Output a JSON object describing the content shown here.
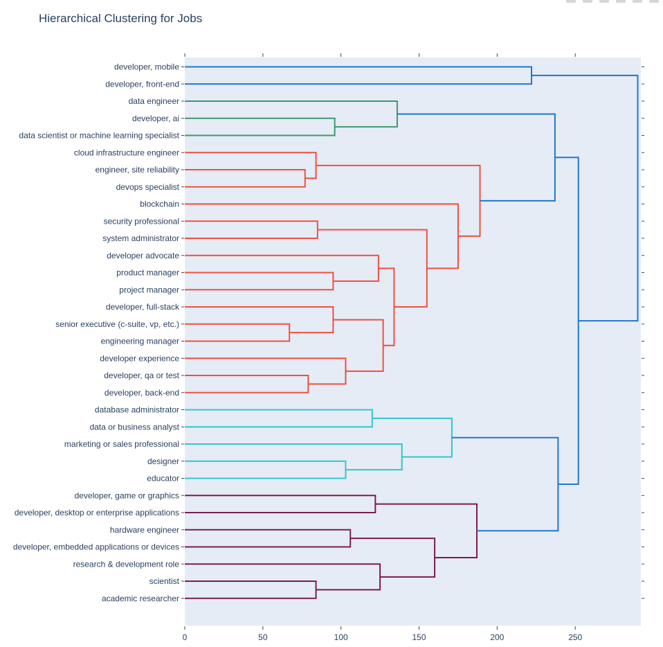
{
  "title": "Hierarchical Clustering for Jobs",
  "toolbar": {
    "buttons": [
      "camera-icon",
      "zoom-icon",
      "pan-icon",
      "zoom-in-icon",
      "zoom-out-icon",
      "autoscale-icon"
    ]
  },
  "chart_data": {
    "type": "dendrogram",
    "orientation": "horizontal",
    "title": "Hierarchical Clustering for Jobs",
    "xlabel": "",
    "ylabel": "",
    "xlim": [
      0,
      292
    ],
    "x_ticks": [
      0,
      50,
      100,
      150,
      200,
      250
    ],
    "grid": false,
    "background": "#e5ecf6",
    "colors": {
      "root": "#1f77cc",
      "green": "#3d9970",
      "red": "#f04f3f",
      "cyan": "#2ec7c9",
      "purple": "#7b1c4f"
    },
    "leaves": [
      "developer, mobile",
      "developer, front-end",
      "data engineer",
      "developer, ai",
      "data scientist or machine learning specialist",
      "cloud infrastructure engineer",
      "engineer, site reliability",
      "devops specialist",
      "blockchain",
      "security professional",
      "system administrator",
      "developer advocate",
      "product manager",
      "project manager",
      "developer, full-stack",
      "senior executive (c-suite, vp, etc.)",
      "engineering manager",
      "developer experience",
      "developer, qa or test",
      "developer, back-end",
      "database administrator",
      "data or business analyst",
      "marketing or sales professional",
      "designer",
      "educator",
      "developer, game or graphics",
      "developer, desktop or enterprise applications",
      "hardware engineer",
      "developer, embedded applications or devices",
      "research & development role",
      "scientist",
      "academic researcher"
    ],
    "merges": [
      {
        "id": "M1",
        "a": "L0",
        "b": "L1",
        "height": 222,
        "color": "root"
      },
      {
        "id": "M2",
        "a": "L3",
        "b": "L4",
        "height": 96,
        "color": "green"
      },
      {
        "id": "M3",
        "a": "L2",
        "b": "M2",
        "height": 136,
        "color": "green"
      },
      {
        "id": "M4",
        "a": "L6",
        "b": "L7",
        "height": 77,
        "color": "red"
      },
      {
        "id": "M5",
        "a": "L5",
        "b": "M4",
        "height": 84,
        "color": "red"
      },
      {
        "id": "M6",
        "a": "L9",
        "b": "L10",
        "height": 85,
        "color": "red"
      },
      {
        "id": "M7",
        "a": "L12",
        "b": "L13",
        "height": 95,
        "color": "red"
      },
      {
        "id": "M8",
        "a": "L11",
        "b": "M7",
        "height": 124,
        "color": "red"
      },
      {
        "id": "M9",
        "a": "L15",
        "b": "L16",
        "height": 67,
        "color": "red"
      },
      {
        "id": "M10",
        "a": "L14",
        "b": "M9",
        "height": 95,
        "color": "red"
      },
      {
        "id": "M11",
        "a": "L18",
        "b": "L19",
        "height": 79,
        "color": "red"
      },
      {
        "id": "M12",
        "a": "L17",
        "b": "M11",
        "height": 103,
        "color": "red"
      },
      {
        "id": "M13",
        "a": "M10",
        "b": "M12",
        "height": 127,
        "color": "red"
      },
      {
        "id": "M14",
        "a": "M8",
        "b": "M13",
        "height": 134,
        "color": "red"
      },
      {
        "id": "M15",
        "a": "M6",
        "b": "M14",
        "height": 155,
        "color": "red"
      },
      {
        "id": "M16",
        "a": "L8",
        "b": "M15",
        "height": 175,
        "color": "red"
      },
      {
        "id": "M17",
        "a": "M5",
        "b": "M16",
        "height": 189,
        "color": "red"
      },
      {
        "id": "M18",
        "a": "M3",
        "b": "M17",
        "height": 237,
        "color": "root"
      },
      {
        "id": "M19",
        "a": "L20",
        "b": "L21",
        "height": 120,
        "color": "cyan"
      },
      {
        "id": "M20",
        "a": "L23",
        "b": "L24",
        "height": 103,
        "color": "cyan"
      },
      {
        "id": "M21",
        "a": "L22",
        "b": "M20",
        "height": 139,
        "color": "cyan"
      },
      {
        "id": "M22",
        "a": "M19",
        "b": "M21",
        "height": 171,
        "color": "cyan"
      },
      {
        "id": "M23",
        "a": "L25",
        "b": "L26",
        "height": 122,
        "color": "purple"
      },
      {
        "id": "M24",
        "a": "L27",
        "b": "L28",
        "height": 106,
        "color": "purple"
      },
      {
        "id": "M25",
        "a": "L30",
        "b": "L31",
        "height": 84,
        "color": "purple"
      },
      {
        "id": "M26",
        "a": "L29",
        "b": "M25",
        "height": 125,
        "color": "purple"
      },
      {
        "id": "M27",
        "a": "M24",
        "b": "M26",
        "height": 160,
        "color": "purple"
      },
      {
        "id": "M28",
        "a": "M23",
        "b": "M27",
        "height": 187,
        "color": "purple"
      },
      {
        "id": "M29",
        "a": "M22",
        "b": "M28",
        "height": 239,
        "color": "root"
      },
      {
        "id": "M30",
        "a": "M18",
        "b": "M29",
        "height": 252,
        "color": "root"
      },
      {
        "id": "M31",
        "a": "M1",
        "b": "M30",
        "height": 290,
        "color": "root"
      }
    ]
  }
}
